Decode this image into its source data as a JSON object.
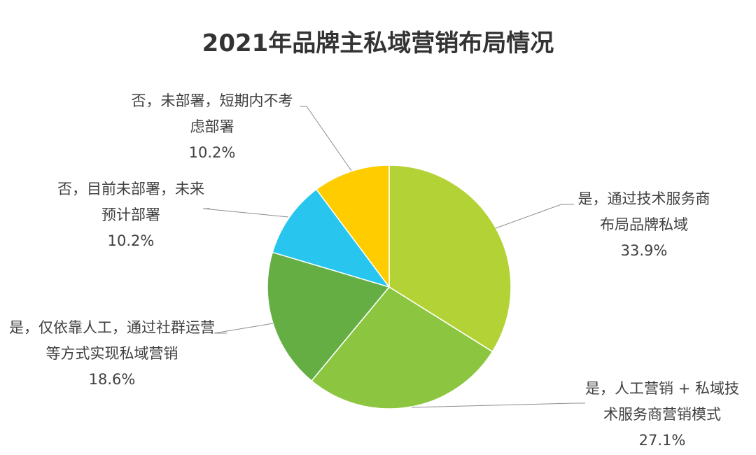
{
  "chart_data": {
    "type": "pie",
    "title": "2021年品牌主私域营销布局情况",
    "slices": [
      {
        "line1": "是，通过技术服务商",
        "line2": "布局品牌私域",
        "pct_label": "33.9%",
        "value": 33.9,
        "color": "#b2d235"
      },
      {
        "line1": "是，人工营销 + 私域技",
        "line2": "术服务商营销模式",
        "pct_label": "27.1%",
        "value": 27.1,
        "color": "#8cc641"
      },
      {
        "line1": "是，仅依靠人工，通过社群运营",
        "line2": "等方式实现私域营销",
        "pct_label": "18.6%",
        "value": 18.6,
        "color": "#64ae44"
      },
      {
        "line1": "否，目前未部署，未来",
        "line2": "预计部署",
        "pct_label": "10.2%",
        "value": 10.2,
        "color": "#28c5ef"
      },
      {
        "line1": "否，未部署，短期内不考",
        "line2": "虑部署",
        "pct_label": "10.2%",
        "value": 10.2,
        "color": "#ffcc00"
      }
    ],
    "start_angle": "12 o'clock",
    "direction": "clockwise",
    "legend": "none"
  }
}
